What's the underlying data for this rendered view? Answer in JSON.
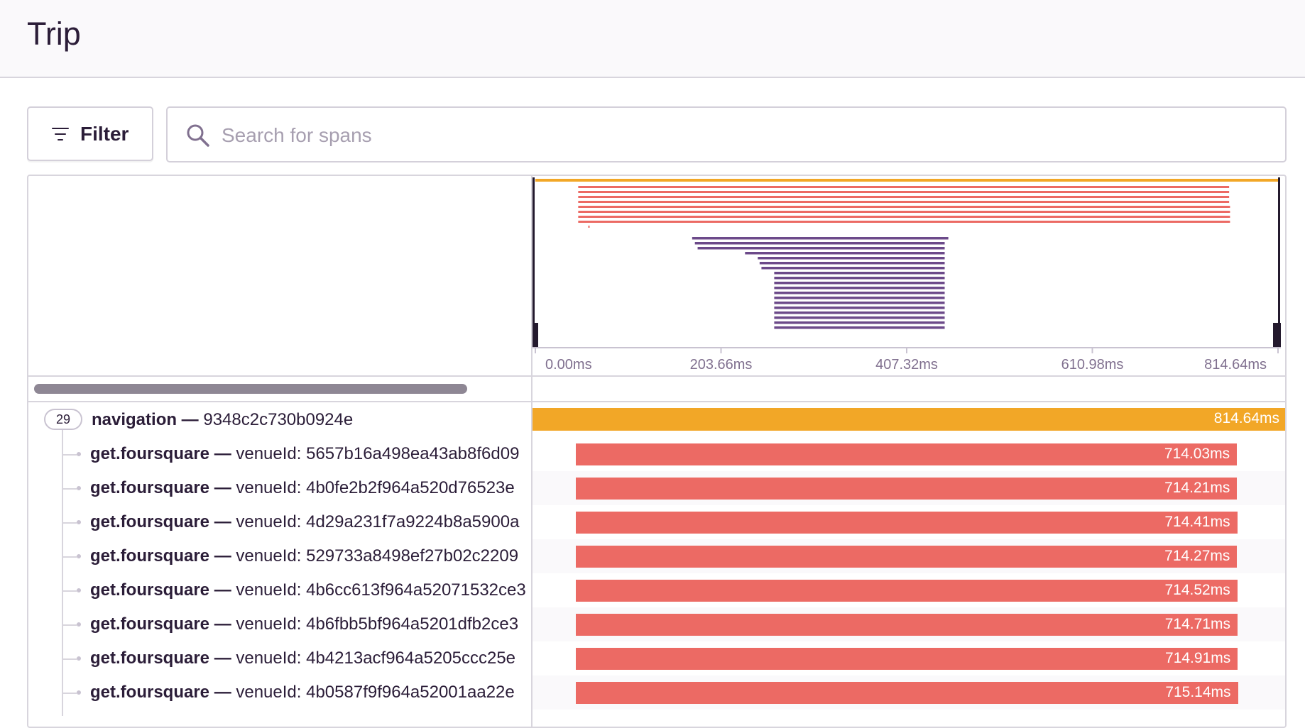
{
  "page": {
    "title": "Trip"
  },
  "toolbar": {
    "filter_label": "Filter",
    "filter_icon": "filter-lines-icon",
    "search_icon": "search-icon",
    "search_placeholder": "Search for spans",
    "search_value": ""
  },
  "colors": {
    "navigation": "#f2a727",
    "foursquare": "#ec6a64",
    "minimap_inner": "#6c4a8a",
    "handle": "#241a2e"
  },
  "minimap": {
    "axis_labels": [
      "0.00ms",
      "203.66ms",
      "407.32ms",
      "610.98ms",
      "814.64ms"
    ],
    "axis_values_ms": [
      0,
      203.66,
      407.32,
      610.98,
      814.64
    ],
    "total_ms": 814.64,
    "root_span": {
      "start_ms": 0,
      "end_ms": 814.64
    },
    "foursquare_spans": [
      {
        "start_ms": 47,
        "end_ms": 761
      },
      {
        "start_ms": 47,
        "end_ms": 761
      },
      {
        "start_ms": 47,
        "end_ms": 761
      },
      {
        "start_ms": 47,
        "end_ms": 761
      },
      {
        "start_ms": 47,
        "end_ms": 762
      },
      {
        "start_ms": 47,
        "end_ms": 762
      },
      {
        "start_ms": 47,
        "end_ms": 762
      },
      {
        "start_ms": 47,
        "end_ms": 762
      },
      {
        "start_ms": 58,
        "end_ms": 59.5
      }
    ],
    "inner_spans": [
      {
        "start_ms": 172,
        "end_ms": 453
      },
      {
        "start_ms": 175,
        "end_ms": 449
      },
      {
        "start_ms": 178,
        "end_ms": 449
      },
      {
        "start_ms": 230,
        "end_ms": 449
      },
      {
        "start_ms": 244,
        "end_ms": 449
      },
      {
        "start_ms": 246,
        "end_ms": 449
      },
      {
        "start_ms": 248,
        "end_ms": 449
      },
      {
        "start_ms": 262,
        "end_ms": 449
      },
      {
        "start_ms": 262,
        "end_ms": 449
      },
      {
        "start_ms": 262,
        "end_ms": 449
      },
      {
        "start_ms": 262,
        "end_ms": 449
      },
      {
        "start_ms": 262,
        "end_ms": 449
      },
      {
        "start_ms": 262,
        "end_ms": 449
      },
      {
        "start_ms": 262,
        "end_ms": 449
      },
      {
        "start_ms": 262,
        "end_ms": 449
      },
      {
        "start_ms": 262,
        "end_ms": 449
      },
      {
        "start_ms": 262,
        "end_ms": 449
      },
      {
        "start_ms": 262,
        "end_ms": 449
      },
      {
        "start_ms": 262,
        "end_ms": 449
      }
    ]
  },
  "spans": [
    {
      "op": "navigation",
      "desc": "9348c2c730b0924e",
      "duration": "814.64ms",
      "start_ms": 0,
      "duration_ms": 814.64,
      "kind": "navigation",
      "child_count": "29"
    },
    {
      "op": "get.foursquare",
      "desc": "venueId: 5657b16a498ea43ab8f6d09",
      "duration": "714.03ms",
      "start_ms": 47,
      "duration_ms": 714.03,
      "kind": "foursquare"
    },
    {
      "op": "get.foursquare",
      "desc": "venueId: 4b0fe2b2f964a520d76523e",
      "duration": "714.21ms",
      "start_ms": 47,
      "duration_ms": 714.21,
      "kind": "foursquare"
    },
    {
      "op": "get.foursquare",
      "desc": "venueId: 4d29a231f7a9224b8a5900a",
      "duration": "714.41ms",
      "start_ms": 47,
      "duration_ms": 714.41,
      "kind": "foursquare"
    },
    {
      "op": "get.foursquare",
      "desc": "venueId: 529733a8498ef27b02c2209",
      "duration": "714.27ms",
      "start_ms": 47,
      "duration_ms": 714.27,
      "kind": "foursquare"
    },
    {
      "op": "get.foursquare",
      "desc": "venueId: 4b6cc613f964a52071532ce3",
      "duration": "714.52ms",
      "start_ms": 47,
      "duration_ms": 714.52,
      "kind": "foursquare"
    },
    {
      "op": "get.foursquare",
      "desc": "venueId: 4b6fbb5bf964a5201dfb2ce3",
      "duration": "714.71ms",
      "start_ms": 47,
      "duration_ms": 714.71,
      "kind": "foursquare"
    },
    {
      "op": "get.foursquare",
      "desc": "venueId: 4b4213acf964a5205ccc25e",
      "duration": "714.91ms",
      "start_ms": 47,
      "duration_ms": 714.91,
      "kind": "foursquare"
    },
    {
      "op": "get.foursquare",
      "desc": "venueId: 4b0587f9f964a52001aa22e",
      "duration": "715.14ms",
      "start_ms": 47,
      "duration_ms": 715.14,
      "kind": "foursquare"
    }
  ]
}
